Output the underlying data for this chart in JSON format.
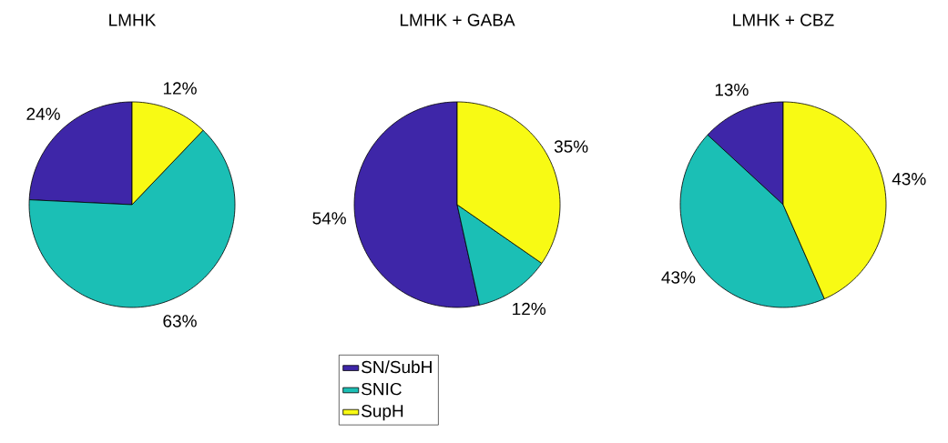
{
  "chart_data": [
    {
      "type": "pie",
      "title": "LMHK",
      "categories": [
        null,
        null,
        null
      ],
      "values": [
        24,
        63,
        12
      ],
      "value_labels": [
        "24%",
        "63%",
        "12%"
      ],
      "colors": [
        "#3e26a8",
        "#1bbfb5",
        "#f8fa14"
      ],
      "legend": false
    },
    {
      "type": "pie",
      "title": "LMHK + GABA",
      "categories": [
        "SN/SubH",
        "SNIC",
        "SupH"
      ],
      "values": [
        54,
        12,
        35
      ],
      "value_labels": [
        "54%",
        "12%",
        "35%"
      ],
      "colors": [
        "#3e26a8",
        "#1bbfb5",
        "#f8fa14"
      ],
      "legend": "bottom"
    },
    {
      "type": "pie",
      "title": "LMHK + CBZ",
      "categories": [
        null,
        null,
        null
      ],
      "values": [
        13,
        43,
        43
      ],
      "value_labels": [
        "13%",
        "43%",
        "43%"
      ],
      "colors": [
        "#3e26a8",
        "#1bbfb5",
        "#f8fa14"
      ],
      "legend": false
    }
  ]
}
